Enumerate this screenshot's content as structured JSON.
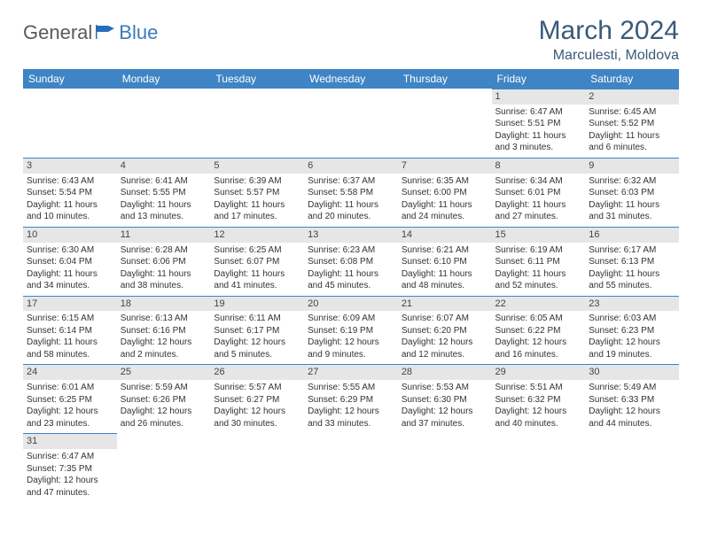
{
  "brand": {
    "general": "General",
    "blue": "Blue"
  },
  "title": "March 2024",
  "location": "Marculesti, Moldova",
  "colors": {
    "header_bg": "#3f84c4",
    "header_text": "#ffffff",
    "daynum_bg": "#e6e6e6",
    "border": "#3f84c4",
    "title_color": "#3a5a7a"
  },
  "weekdays": [
    "Sunday",
    "Monday",
    "Tuesday",
    "Wednesday",
    "Thursday",
    "Friday",
    "Saturday"
  ],
  "days": [
    {
      "n": 1,
      "sr": "Sunrise: 6:47 AM",
      "ss": "Sunset: 5:51 PM",
      "dl1": "Daylight: 11 hours",
      "dl2": "and 3 minutes."
    },
    {
      "n": 2,
      "sr": "Sunrise: 6:45 AM",
      "ss": "Sunset: 5:52 PM",
      "dl1": "Daylight: 11 hours",
      "dl2": "and 6 minutes."
    },
    {
      "n": 3,
      "sr": "Sunrise: 6:43 AM",
      "ss": "Sunset: 5:54 PM",
      "dl1": "Daylight: 11 hours",
      "dl2": "and 10 minutes."
    },
    {
      "n": 4,
      "sr": "Sunrise: 6:41 AM",
      "ss": "Sunset: 5:55 PM",
      "dl1": "Daylight: 11 hours",
      "dl2": "and 13 minutes."
    },
    {
      "n": 5,
      "sr": "Sunrise: 6:39 AM",
      "ss": "Sunset: 5:57 PM",
      "dl1": "Daylight: 11 hours",
      "dl2": "and 17 minutes."
    },
    {
      "n": 6,
      "sr": "Sunrise: 6:37 AM",
      "ss": "Sunset: 5:58 PM",
      "dl1": "Daylight: 11 hours",
      "dl2": "and 20 minutes."
    },
    {
      "n": 7,
      "sr": "Sunrise: 6:35 AM",
      "ss": "Sunset: 6:00 PM",
      "dl1": "Daylight: 11 hours",
      "dl2": "and 24 minutes."
    },
    {
      "n": 8,
      "sr": "Sunrise: 6:34 AM",
      "ss": "Sunset: 6:01 PM",
      "dl1": "Daylight: 11 hours",
      "dl2": "and 27 minutes."
    },
    {
      "n": 9,
      "sr": "Sunrise: 6:32 AM",
      "ss": "Sunset: 6:03 PM",
      "dl1": "Daylight: 11 hours",
      "dl2": "and 31 minutes."
    },
    {
      "n": 10,
      "sr": "Sunrise: 6:30 AM",
      "ss": "Sunset: 6:04 PM",
      "dl1": "Daylight: 11 hours",
      "dl2": "and 34 minutes."
    },
    {
      "n": 11,
      "sr": "Sunrise: 6:28 AM",
      "ss": "Sunset: 6:06 PM",
      "dl1": "Daylight: 11 hours",
      "dl2": "and 38 minutes."
    },
    {
      "n": 12,
      "sr": "Sunrise: 6:25 AM",
      "ss": "Sunset: 6:07 PM",
      "dl1": "Daylight: 11 hours",
      "dl2": "and 41 minutes."
    },
    {
      "n": 13,
      "sr": "Sunrise: 6:23 AM",
      "ss": "Sunset: 6:08 PM",
      "dl1": "Daylight: 11 hours",
      "dl2": "and 45 minutes."
    },
    {
      "n": 14,
      "sr": "Sunrise: 6:21 AM",
      "ss": "Sunset: 6:10 PM",
      "dl1": "Daylight: 11 hours",
      "dl2": "and 48 minutes."
    },
    {
      "n": 15,
      "sr": "Sunrise: 6:19 AM",
      "ss": "Sunset: 6:11 PM",
      "dl1": "Daylight: 11 hours",
      "dl2": "and 52 minutes."
    },
    {
      "n": 16,
      "sr": "Sunrise: 6:17 AM",
      "ss": "Sunset: 6:13 PM",
      "dl1": "Daylight: 11 hours",
      "dl2": "and 55 minutes."
    },
    {
      "n": 17,
      "sr": "Sunrise: 6:15 AM",
      "ss": "Sunset: 6:14 PM",
      "dl1": "Daylight: 11 hours",
      "dl2": "and 58 minutes."
    },
    {
      "n": 18,
      "sr": "Sunrise: 6:13 AM",
      "ss": "Sunset: 6:16 PM",
      "dl1": "Daylight: 12 hours",
      "dl2": "and 2 minutes."
    },
    {
      "n": 19,
      "sr": "Sunrise: 6:11 AM",
      "ss": "Sunset: 6:17 PM",
      "dl1": "Daylight: 12 hours",
      "dl2": "and 5 minutes."
    },
    {
      "n": 20,
      "sr": "Sunrise: 6:09 AM",
      "ss": "Sunset: 6:19 PM",
      "dl1": "Daylight: 12 hours",
      "dl2": "and 9 minutes."
    },
    {
      "n": 21,
      "sr": "Sunrise: 6:07 AM",
      "ss": "Sunset: 6:20 PM",
      "dl1": "Daylight: 12 hours",
      "dl2": "and 12 minutes."
    },
    {
      "n": 22,
      "sr": "Sunrise: 6:05 AM",
      "ss": "Sunset: 6:22 PM",
      "dl1": "Daylight: 12 hours",
      "dl2": "and 16 minutes."
    },
    {
      "n": 23,
      "sr": "Sunrise: 6:03 AM",
      "ss": "Sunset: 6:23 PM",
      "dl1": "Daylight: 12 hours",
      "dl2": "and 19 minutes."
    },
    {
      "n": 24,
      "sr": "Sunrise: 6:01 AM",
      "ss": "Sunset: 6:25 PM",
      "dl1": "Daylight: 12 hours",
      "dl2": "and 23 minutes."
    },
    {
      "n": 25,
      "sr": "Sunrise: 5:59 AM",
      "ss": "Sunset: 6:26 PM",
      "dl1": "Daylight: 12 hours",
      "dl2": "and 26 minutes."
    },
    {
      "n": 26,
      "sr": "Sunrise: 5:57 AM",
      "ss": "Sunset: 6:27 PM",
      "dl1": "Daylight: 12 hours",
      "dl2": "and 30 minutes."
    },
    {
      "n": 27,
      "sr": "Sunrise: 5:55 AM",
      "ss": "Sunset: 6:29 PM",
      "dl1": "Daylight: 12 hours",
      "dl2": "and 33 minutes."
    },
    {
      "n": 28,
      "sr": "Sunrise: 5:53 AM",
      "ss": "Sunset: 6:30 PM",
      "dl1": "Daylight: 12 hours",
      "dl2": "and 37 minutes."
    },
    {
      "n": 29,
      "sr": "Sunrise: 5:51 AM",
      "ss": "Sunset: 6:32 PM",
      "dl1": "Daylight: 12 hours",
      "dl2": "and 40 minutes."
    },
    {
      "n": 30,
      "sr": "Sunrise: 5:49 AM",
      "ss": "Sunset: 6:33 PM",
      "dl1": "Daylight: 12 hours",
      "dl2": "and 44 minutes."
    },
    {
      "n": 31,
      "sr": "Sunrise: 6:47 AM",
      "ss": "Sunset: 7:35 PM",
      "dl1": "Daylight: 12 hours",
      "dl2": "and 47 minutes."
    }
  ],
  "first_weekday_index": 5
}
